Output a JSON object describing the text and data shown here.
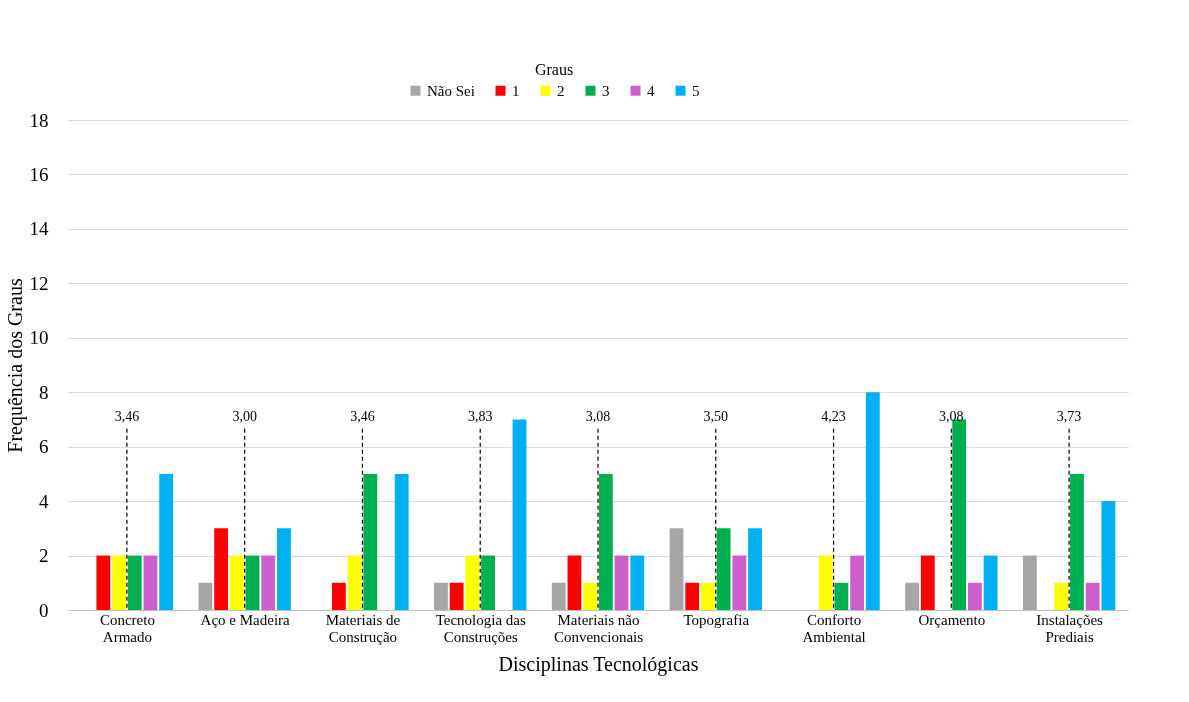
{
  "chart_data": {
    "type": "bar",
    "xlabel": "Disciplinas Tecnológicas",
    "ylabel": "Frequência dos Graus",
    "legend_title": "Graus",
    "categories": [
      "Concreto Armado",
      "Aço e Madeira",
      "Materiais de Construção",
      "Tecnologia das Construções",
      "Materiais não Convencionais",
      "Topografia",
      "Conforto Ambiental",
      "Orçamento",
      "Instalações Prediais"
    ],
    "series": [
      {
        "name": "Não Sei",
        "color": "#a6a6a6",
        "values": [
          0,
          1,
          0,
          1,
          1,
          3,
          0,
          1,
          2
        ]
      },
      {
        "name": "1",
        "color": "#ff0000",
        "values": [
          2,
          3,
          1,
          1,
          2,
          1,
          0,
          2,
          0
        ]
      },
      {
        "name": "2",
        "color": "#ffff00",
        "values": [
          2,
          2,
          2,
          2,
          1,
          1,
          2,
          0,
          1
        ]
      },
      {
        "name": "3",
        "color": "#00b050",
        "values": [
          2,
          2,
          5,
          2,
          5,
          3,
          1,
          7,
          5
        ]
      },
      {
        "name": "4",
        "color": "#cc5fcc",
        "values": [
          2,
          2,
          0,
          0,
          2,
          2,
          2,
          1,
          1
        ]
      },
      {
        "name": "5",
        "color": "#00b0f0",
        "values": [
          5,
          3,
          5,
          7,
          2,
          3,
          8,
          2,
          4
        ]
      }
    ],
    "ref_lines": [
      {
        "axis": "x",
        "value": "Concreto Armado",
        "label": "3,46",
        "line_style": "dashed"
      },
      {
        "axis": "x",
        "value": "Aço e Madeira",
        "label": "3,00",
        "line_style": "dashed"
      },
      {
        "axis": "x",
        "value": "Materiais de Construção",
        "label": "3,46",
        "line_style": "dashed"
      },
      {
        "axis": "x",
        "value": "Tecnologia das Construções",
        "label": "3,83",
        "line_style": "dashed"
      },
      {
        "axis": "x",
        "value": "Materiais não Convencionais",
        "label": "3,08",
        "line_style": "dashed"
      },
      {
        "axis": "x",
        "value": "Topografia",
        "label": "3,50",
        "line_style": "dashed"
      },
      {
        "axis": "x",
        "value": "Conforto Ambiental",
        "label": "4,23",
        "line_style": "dashed"
      },
      {
        "axis": "x",
        "value": "Orçamento",
        "label": "3,08",
        "line_style": "dashed"
      },
      {
        "axis": "x",
        "value": "Instalações Prediais",
        "label": "3,73",
        "line_style": "dashed"
      }
    ],
    "ylim": [
      0,
      18
    ],
    "yticks": [
      0,
      2,
      4,
      6,
      8,
      10,
      12,
      14,
      16,
      18
    ],
    "grid": "y",
    "legend": "top"
  }
}
